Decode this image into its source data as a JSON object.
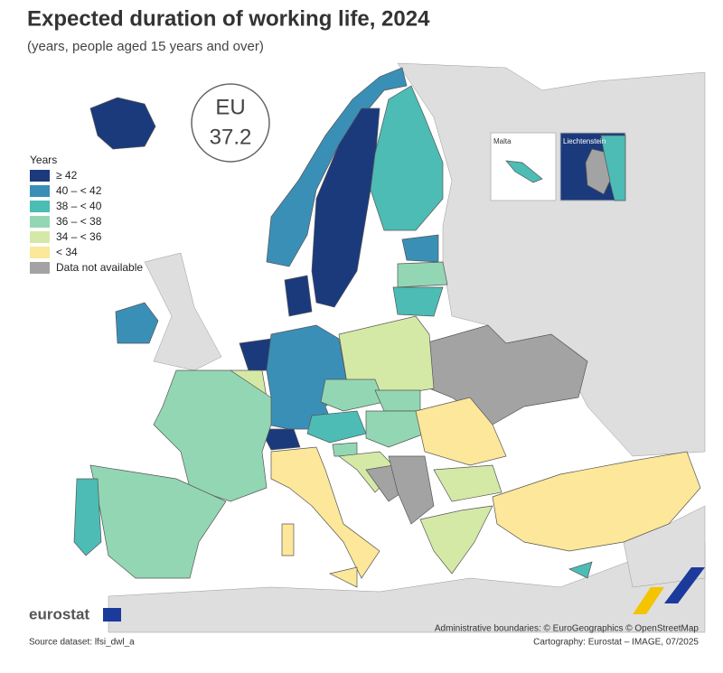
{
  "header": {
    "title": "Expected duration of working life, 2024",
    "subtitle": "(years, people aged 15 years and over)"
  },
  "eu_badge": {
    "label": "EU",
    "value": 37.2
  },
  "legend": {
    "title": "Years",
    "items": [
      {
        "label": "≥ 42",
        "color": "#1b3a7c"
      },
      {
        "label": "40 – < 42",
        "color": "#3a8fb7"
      },
      {
        "label": "38 – < 40",
        "color": "#4cbcb5"
      },
      {
        "label": "36 – < 38",
        "color": "#93d6b3"
      },
      {
        "label": "34 – < 36",
        "color": "#d5e9a7"
      },
      {
        "label": "< 34",
        "color": "#fce79a"
      }
    ],
    "no_data": {
      "label": "Data not available",
      "color": "#a3a3a3"
    }
  },
  "insets": [
    "Malta",
    "Liechtenstein"
  ],
  "footer": {
    "logo": "eurostat",
    "source": "Source dataset: lfsi_dwl_a",
    "boundaries": "Administrative boundaries: © EuroGeographics © OpenStreetMap",
    "cartography": "Cartography: Eurostat – IMAGE, 07/2025"
  }
}
